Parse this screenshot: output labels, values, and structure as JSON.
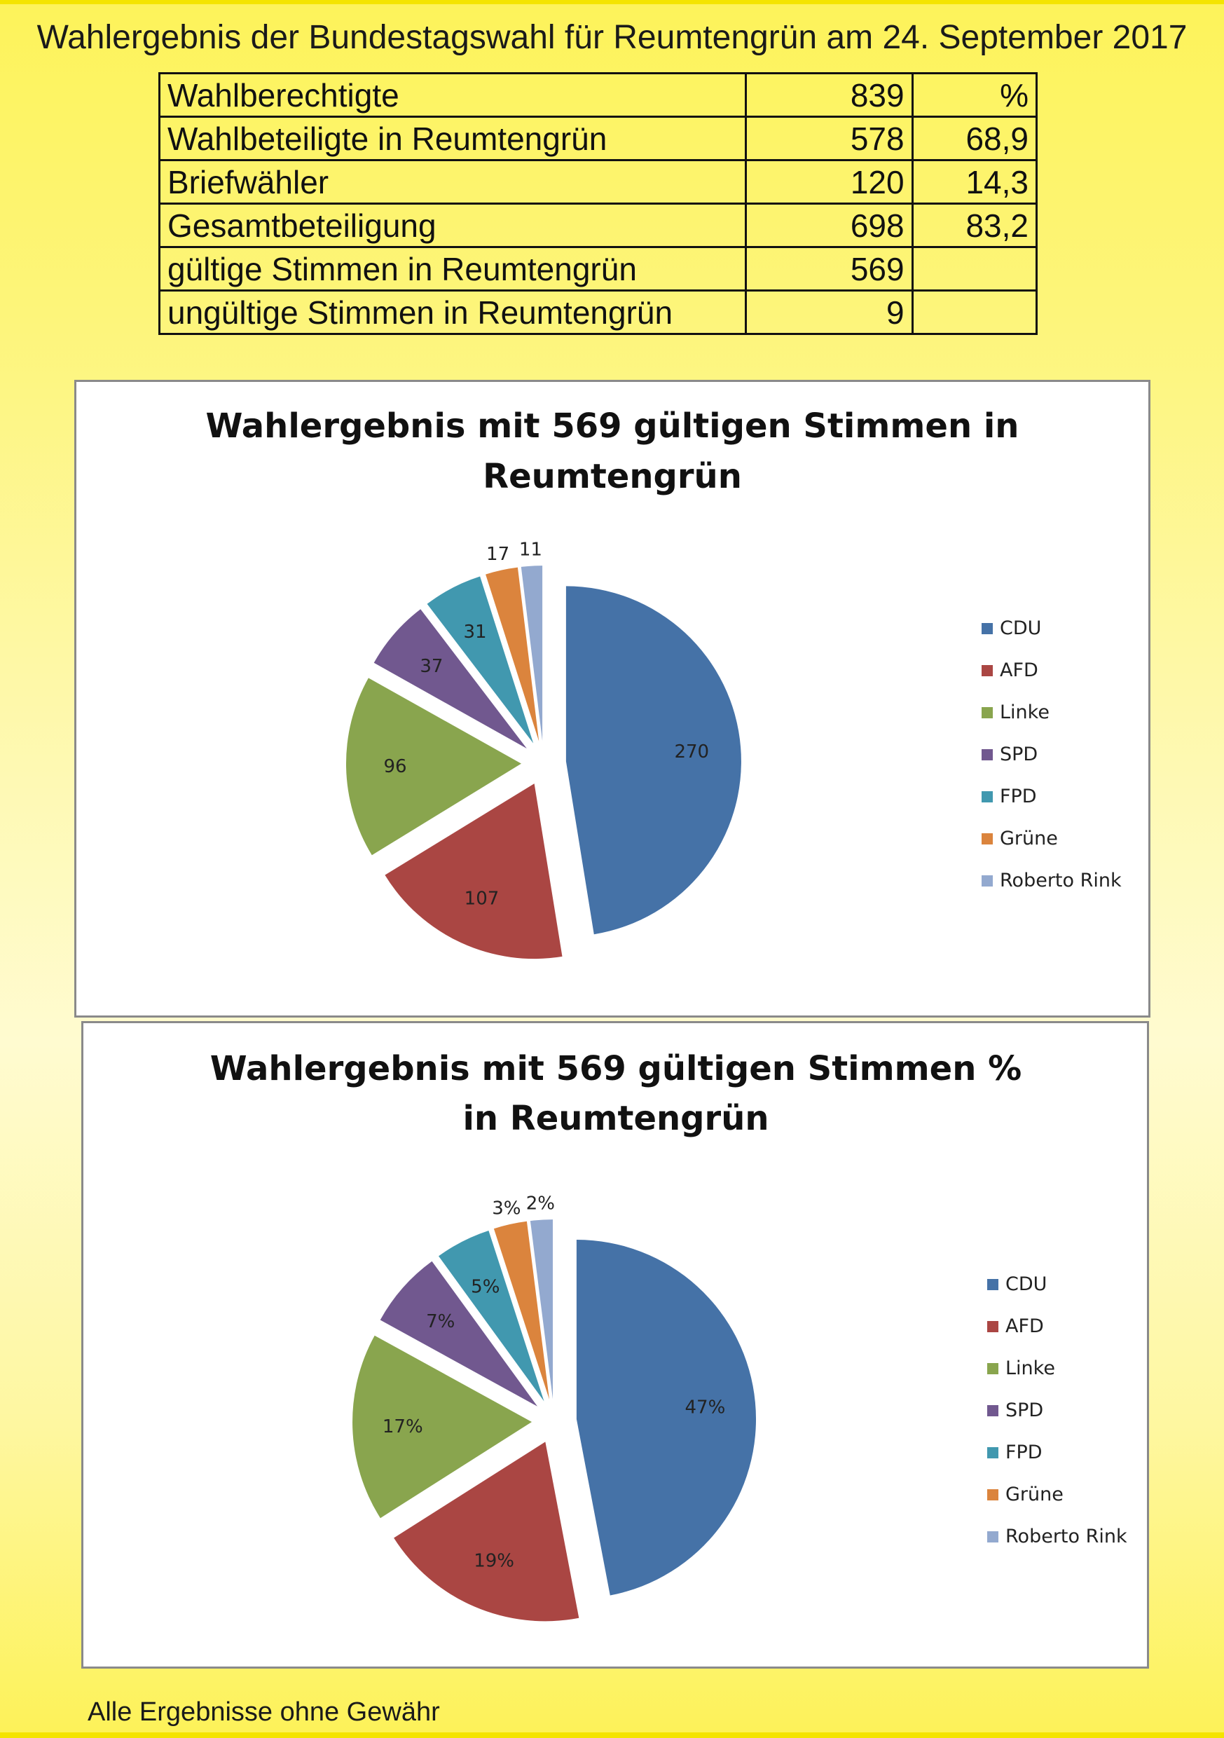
{
  "title": "Wahlergebnis der Bundestagswahl für Reumtengrün am 24. September 2017",
  "table": {
    "rows": [
      {
        "label": "Wahlberechtigte",
        "value": "839",
        "percent": "%"
      },
      {
        "label": "Wahlbeteiligte in Reumtengrün",
        "value": "578",
        "percent": "68,9"
      },
      {
        "label": "Briefwähler",
        "value": "120",
        "percent": "14,3"
      },
      {
        "label": "Gesamtbeteiligung",
        "value": "698",
        "percent": "83,2"
      },
      {
        "label": "gültige Stimmen in  Reumtengrün",
        "value": "569",
        "percent": ""
      },
      {
        "label": "ungültige Stimmen in  Reumtengrün",
        "value": "9",
        "percent": ""
      }
    ]
  },
  "chart_data": [
    {
      "type": "pie",
      "title": "Wahlergebnis mit 569 gültigen Stimmen in Reumtengrün",
      "title_lines": [
        "Wahlergebnis mit 569 gültigen Stimmen in",
        "Reumtengrün"
      ],
      "categories": [
        "CDU",
        "AFD",
        "Linke",
        "SPD",
        "FPD",
        "Grüne",
        "Roberto Rink"
      ],
      "values": [
        270,
        107,
        96,
        37,
        31,
        17,
        11
      ],
      "data_labels": [
        "270",
        "107",
        "96",
        "37",
        "31",
        "17",
        "11"
      ],
      "colors": [
        "#4572a7",
        "#aa4643",
        "#89a54e",
        "#71588f",
        "#4198af",
        "#db843d",
        "#93a9cf"
      ],
      "legend_position": "right",
      "exploded": true
    },
    {
      "type": "pie",
      "title": "Wahlergebnis mit 569 gültigen Stimmen % in Reumtengrün",
      "title_lines": [
        "Wahlergebnis mit 569 gültigen Stimmen %",
        "in Reumtengrün"
      ],
      "categories": [
        "CDU",
        "AFD",
        "Linke",
        "SPD",
        "FPD",
        "Grüne",
        "Roberto Rink"
      ],
      "values": [
        47,
        19,
        17,
        7,
        5,
        3,
        2
      ],
      "data_labels": [
        "47%",
        "19%",
        "17%",
        "7%",
        "5%",
        "3%",
        "2%"
      ],
      "colors": [
        "#4572a7",
        "#aa4643",
        "#89a54e",
        "#71588f",
        "#4198af",
        "#db843d",
        "#93a9cf"
      ],
      "legend_position": "right",
      "exploded": true
    }
  ],
  "footer": "Alle Ergebnisse ohne Gewähr"
}
